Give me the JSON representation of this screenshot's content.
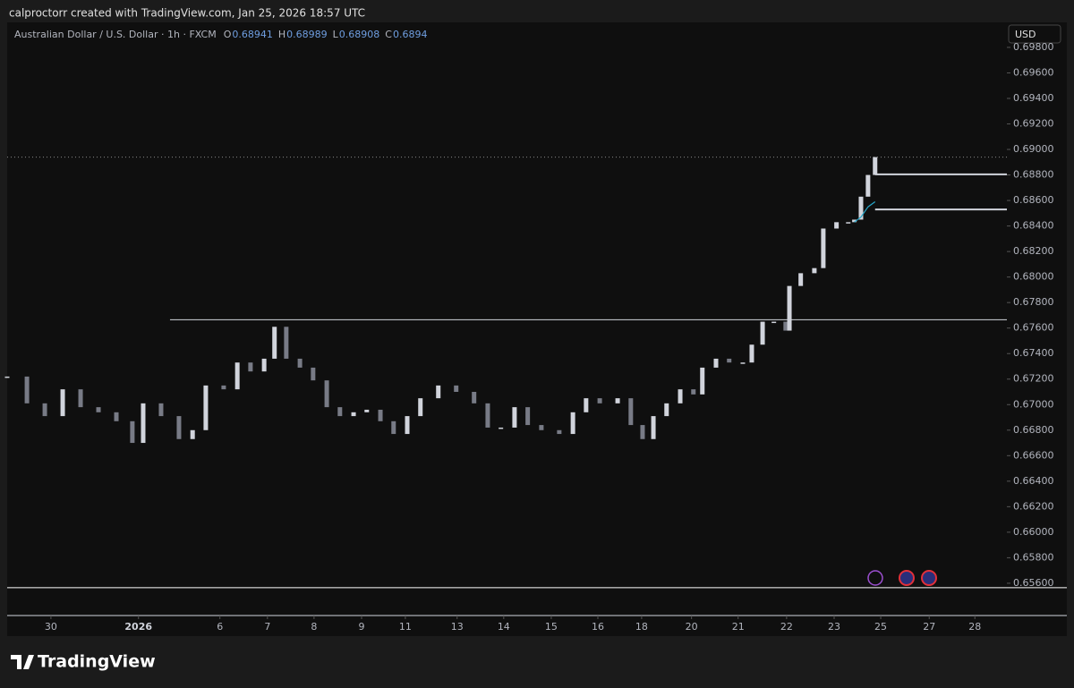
{
  "header": {
    "attribution": "calproctorr created with TradingView.com, Jan 25, 2026 18:57 UTC"
  },
  "chart_data": {
    "type": "candlestick",
    "title": "Australian Dollar / U.S. Dollar · 1h · FXCM",
    "ohlc": [
      {
        "label": "O",
        "value": 0.68941
      },
      {
        "label": "H",
        "value": 0.68989
      },
      {
        "label": "L",
        "value": 0.68908
      },
      {
        "label": "C",
        "value": 0.6894
      }
    ],
    "currency": "USD",
    "x": [
      0,
      0.42,
      0.8,
      1.18,
      1.56,
      1.94,
      2.32,
      2.66,
      2.89,
      3.27,
      3.65,
      3.94,
      4.22,
      4.6,
      4.89,
      5.17,
      5.46,
      5.68,
      5.93,
      6.22,
      6.5,
      6.79,
      7.07,
      7.36,
      7.64,
      7.93,
      8.21,
      8.5,
      8.78,
      9.16,
      9.54,
      9.92,
      10.21,
      10.49,
      10.78,
      11.06,
      11.35,
      11.73,
      12.02,
      12.3,
      12.59,
      12.97,
      13.25,
      13.5,
      13.73,
      14.01,
      14.3,
      14.58,
      14.77,
      15.06,
      15.34,
      15.63,
      15.82,
      16.05,
      16.29,
      16.54,
      16.62,
      16.86,
      17.15,
      17.34,
      17.62,
      17.87,
      18,
      18.14,
      18.29,
      18.44
    ],
    "values": [
      0.6722,
      0.6701,
      0.6691,
      0.6712,
      0.6698,
      0.6694,
      0.6687,
      0.667,
      0.6701,
      0.6691,
      0.6673,
      0.668,
      0.6715,
      0.6712,
      0.6733,
      0.6726,
      0.6736,
      0.6761,
      0.6736,
      0.6729,
      0.6719,
      0.6698,
      0.6691,
      0.6694,
      0.6696,
      0.6687,
      0.6677,
      0.6691,
      0.6705,
      0.6715,
      0.671,
      0.6701,
      0.6682,
      0.6682,
      0.6698,
      0.6684,
      0.668,
      0.6677,
      0.6694,
      0.6705,
      0.6701,
      0.6705,
      0.6684,
      0.6673,
      0.6691,
      0.6701,
      0.6712,
      0.6708,
      0.6729,
      0.6736,
      0.6733,
      0.6733,
      0.6747,
      0.6765,
      0.6765,
      0.6758,
      0.6793,
      0.6803,
      0.6807,
      0.6838,
      0.6843,
      0.6843,
      0.6845,
      0.6863,
      0.688,
      0.6894
    ],
    "up_color": "#d1d4dc",
    "down_color": "#787b86",
    "vwap": {
      "color": "#26a6c9",
      "x": [
        18,
        18.14,
        18.29,
        18.44
      ],
      "values": [
        0.6843,
        0.6847,
        0.6855,
        0.6859
      ]
    },
    "levels": [
      {
        "value": 0.67665,
        "from": 3.46,
        "color": "#d1d4dc"
      },
      {
        "value": 0.68805,
        "from": 18.44,
        "color": "#d1d4dc"
      },
      {
        "value": 0.6853,
        "from": 18.44,
        "color": "#d1d4dc"
      },
      {
        "value": 0.65565,
        "from": 0,
        "color": "#ffffff"
      }
    ],
    "xlim": [
      0,
      21.24
    ],
    "ylim": [
      0.65347,
      0.69996
    ],
    "xticks": [
      {
        "value": 0.93,
        "label": "30"
      },
      {
        "value": 2.79,
        "label": "2026"
      },
      {
        "value": 4.52,
        "label": "6"
      },
      {
        "value": 5.53,
        "label": "7"
      },
      {
        "value": 6.52,
        "label": "8"
      },
      {
        "value": 7.53,
        "label": "9"
      },
      {
        "value": 8.46,
        "label": "11"
      },
      {
        "value": 9.56,
        "label": "13"
      },
      {
        "value": 10.55,
        "label": "14"
      },
      {
        "value": 11.56,
        "label": "15"
      },
      {
        "value": 12.55,
        "label": "16"
      },
      {
        "value": 13.48,
        "label": "18"
      },
      {
        "value": 14.54,
        "label": "20"
      },
      {
        "value": 15.53,
        "label": "21"
      },
      {
        "value": 16.56,
        "label": "22"
      },
      {
        "value": 17.57,
        "label": "23"
      },
      {
        "value": 18.56,
        "label": "25"
      },
      {
        "value": 19.59,
        "label": "27"
      },
      {
        "value": 20.56,
        "label": "28"
      }
    ],
    "yticks": [
      {
        "value": 0.656,
        "label": "0.65600"
      },
      {
        "value": 0.658,
        "label": "0.65800"
      },
      {
        "value": 0.66,
        "label": "0.66000"
      },
      {
        "value": 0.662,
        "label": "0.66200"
      },
      {
        "value": 0.664,
        "label": "0.66400"
      },
      {
        "value": 0.666,
        "label": "0.66600"
      },
      {
        "value": 0.668,
        "label": "0.66800"
      },
      {
        "value": 0.67,
        "label": "0.67000"
      },
      {
        "value": 0.672,
        "label": "0.67200"
      },
      {
        "value": 0.674,
        "label": "0.67400"
      },
      {
        "value": 0.676,
        "label": "0.67600"
      },
      {
        "value": 0.678,
        "label": "0.67800"
      },
      {
        "value": 0.68,
        "label": "0.68000"
      },
      {
        "value": 0.682,
        "label": "0.68200"
      },
      {
        "value": 0.684,
        "label": "0.68400"
      },
      {
        "value": 0.686,
        "label": "0.68600"
      },
      {
        "value": 0.688,
        "label": "0.68800"
      },
      {
        "value": 0.69,
        "label": "0.69000"
      },
      {
        "value": 0.692,
        "label": "0.69200"
      },
      {
        "value": 0.694,
        "label": "0.69400"
      },
      {
        "value": 0.696,
        "label": "0.69600"
      },
      {
        "value": 0.698,
        "label": "0.69800"
      }
    ]
  },
  "footer": {
    "logo": "TradingView"
  }
}
